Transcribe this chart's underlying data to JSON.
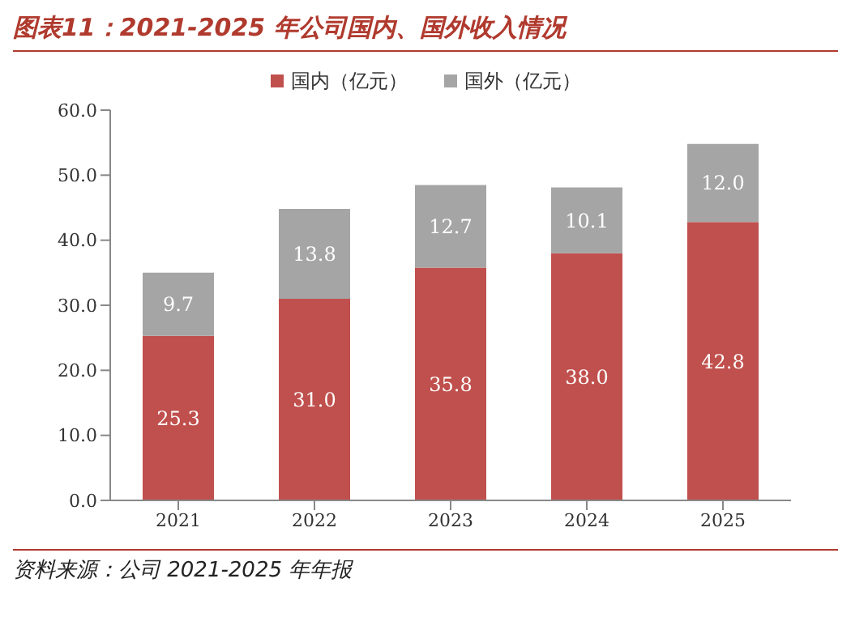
{
  "chart_data": {
    "type": "bar",
    "title": "图表11：2021-2025 年公司国内、国外收入情况",
    "categories": [
      "2021",
      "2022",
      "2023",
      "2024",
      "2025"
    ],
    "stacked": true,
    "series": [
      {
        "name": "国内（亿元）",
        "color": "#c0504d",
        "values": [
          25.3,
          31.0,
          35.8,
          38.0,
          42.8
        ],
        "value_labels": [
          "25.3",
          "31.0",
          "35.8",
          "38.0",
          "42.8"
        ]
      },
      {
        "name": "国外（亿元）",
        "color": "#a5a5a5",
        "values": [
          9.7,
          13.8,
          12.7,
          10.1,
          12.0
        ],
        "value_labels": [
          "9.7",
          "13.8",
          "12.7",
          "10.1",
          "12.0"
        ]
      }
    ],
    "ylim": [
      0,
      60
    ],
    "yticks": [
      {
        "value": 0,
        "label": "0.0"
      },
      {
        "value": 10,
        "label": "10.0"
      },
      {
        "value": 20,
        "label": "20.0"
      },
      {
        "value": 30,
        "label": "30.0"
      },
      {
        "value": 40,
        "label": "40.0"
      },
      {
        "value": 50,
        "label": "50.0"
      },
      {
        "value": 60,
        "label": "60.0"
      }
    ],
    "legend": "top",
    "grid": false,
    "annotations": [
      "资料来源：公司 2021-2025 年年报"
    ]
  }
}
